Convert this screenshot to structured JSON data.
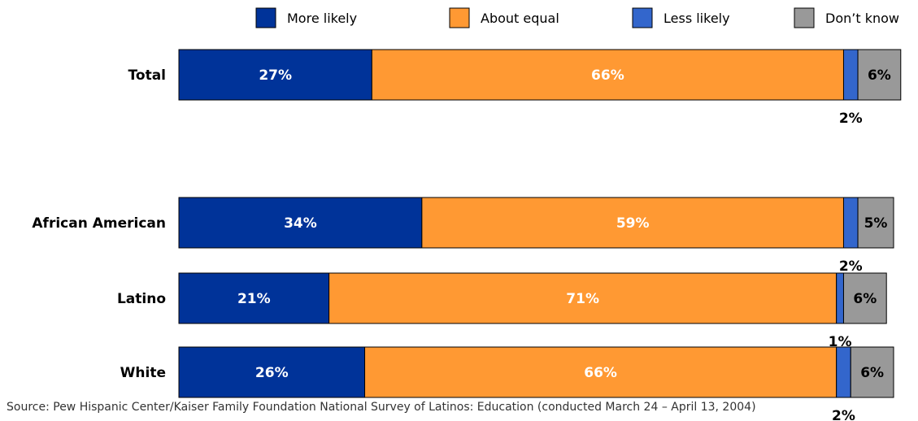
{
  "chart_data": {
    "type": "bar",
    "orientation": "horizontal",
    "stacked": true,
    "legend_position": "top",
    "legend": [
      {
        "name": "More likely",
        "color": "#003399"
      },
      {
        "name": "About equal",
        "color": "#FF9933"
      },
      {
        "name": "Less likely",
        "color": "#3366CC"
      },
      {
        "name": "Don’t know",
        "color": "#999999"
      }
    ],
    "categories": [
      "Total",
      "African American",
      "Latino",
      "White"
    ],
    "series": [
      {
        "name": "More likely",
        "values": [
          27,
          34,
          21,
          26
        ]
      },
      {
        "name": "About equal",
        "values": [
          66,
          59,
          71,
          66
        ]
      },
      {
        "name": "Less likely",
        "values": [
          2,
          2,
          1,
          2
        ]
      },
      {
        "name": "Don’t know",
        "values": [
          6,
          5,
          6,
          6
        ]
      }
    ],
    "value_format": "{v}%",
    "grid": false
  },
  "footnote": "Source: Pew Hispanic Center/Kaiser Family Foundation National Survey of Latinos: Education (conducted March 24 – April 13, 2004)"
}
